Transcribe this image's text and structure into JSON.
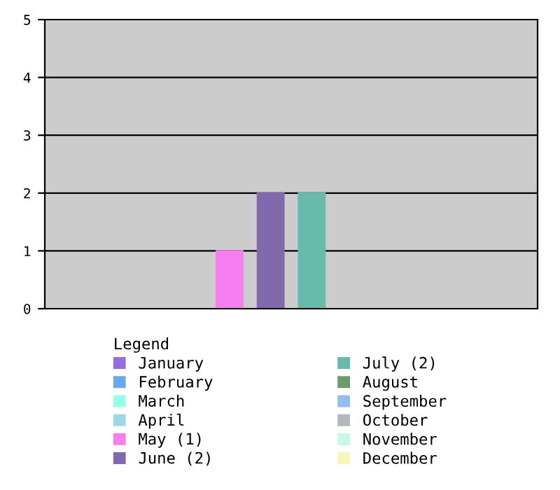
{
  "chart_data": {
    "type": "bar",
    "stacked": true,
    "categories": [
      null,
      null,
      null,
      null,
      null,
      null,
      null,
      null,
      null,
      null,
      null,
      null
    ],
    "legend_title": "Legend",
    "legend": "bottom",
    "ylim": [
      0,
      5
    ],
    "yticks": [
      0,
      1,
      2,
      3,
      4,
      5
    ],
    "grid": "y",
    "series": [
      {
        "name": "January",
        "color": "#9370db",
        "values": [
          0,
          null,
          null,
          null,
          null,
          null,
          null,
          null,
          null,
          null,
          null,
          null
        ]
      },
      {
        "name": "February",
        "color": "#6aa7ee",
        "values": [
          null,
          0,
          null,
          null,
          null,
          null,
          null,
          null,
          null,
          null,
          null,
          null
        ]
      },
      {
        "name": "March",
        "color": "#98ffe8",
        "values": [
          null,
          null,
          0,
          null,
          null,
          null,
          null,
          null,
          null,
          null,
          null,
          null
        ]
      },
      {
        "name": "April",
        "color": "#9ed8e2",
        "values": [
          null,
          null,
          null,
          0,
          null,
          null,
          null,
          null,
          null,
          null,
          null,
          null
        ]
      },
      {
        "name": "May (1)",
        "color": "#f67ff0",
        "values": [
          null,
          null,
          null,
          null,
          1,
          null,
          null,
          null,
          null,
          null,
          null,
          null
        ]
      },
      {
        "name": "June (2)",
        "color": "#8069ad",
        "values": [
          null,
          null,
          null,
          null,
          null,
          2,
          null,
          null,
          null,
          null,
          null,
          null
        ]
      },
      {
        "name": "July (2)",
        "color": "#66bbab",
        "values": [
          null,
          null,
          null,
          null,
          null,
          null,
          2,
          null,
          null,
          null,
          null,
          null
        ]
      },
      {
        "name": "August",
        "color": "#6b9a6f",
        "values": [
          null,
          null,
          null,
          null,
          null,
          null,
          null,
          0,
          null,
          null,
          null,
          null
        ]
      },
      {
        "name": "September",
        "color": "#92bdee",
        "values": [
          null,
          null,
          null,
          null,
          null,
          null,
          null,
          null,
          0,
          null,
          null,
          null
        ]
      },
      {
        "name": "October",
        "color": "#b2b8be",
        "values": [
          null,
          null,
          null,
          null,
          null,
          null,
          null,
          null,
          null,
          0,
          null,
          null
        ]
      },
      {
        "name": "November",
        "color": "#c8f8e6",
        "values": [
          null,
          null,
          null,
          null,
          null,
          null,
          null,
          null,
          null,
          null,
          0,
          null
        ]
      },
      {
        "name": "December",
        "color": "#f7f5b9",
        "values": [
          null,
          null,
          null,
          null,
          null,
          null,
          null,
          null,
          null,
          null,
          null,
          0
        ]
      }
    ]
  }
}
